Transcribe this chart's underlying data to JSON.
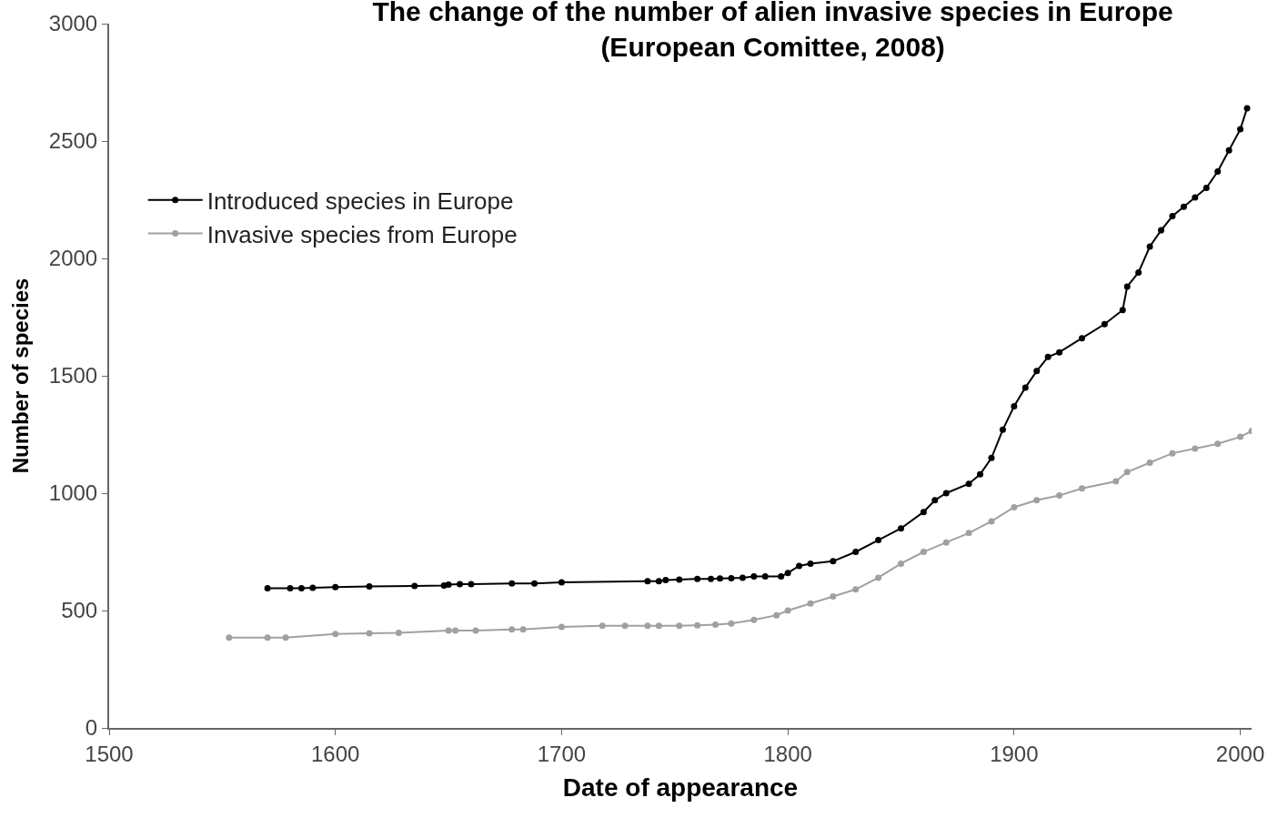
{
  "chart_data": {
    "type": "line",
    "title": "The change of the number of alien invasive species in Europe\n(European Comittee, 2008)",
    "xlabel": "Date of appearance",
    "ylabel": "Number of species",
    "xlim": [
      1500,
      2005
    ],
    "xticks": [
      1500,
      1600,
      1700,
      1800,
      1900,
      2000
    ],
    "ylim": [
      0,
      3000
    ],
    "yticks": [
      0,
      500,
      1000,
      1500,
      2000,
      2500,
      3000
    ],
    "legend": "top left",
    "marker": "circle",
    "line_style": "solid",
    "series": [
      {
        "name": "Introduced species in Europe",
        "color": "#000000",
        "x": [
          1570,
          1580,
          1585,
          1590,
          1600,
          1615,
          1635,
          1648,
          1650,
          1655,
          1660,
          1678,
          1688,
          1700,
          1738,
          1743,
          1746,
          1752,
          1760,
          1766,
          1770,
          1775,
          1780,
          1785,
          1790,
          1797,
          1800,
          1805,
          1810,
          1820,
          1830,
          1840,
          1850,
          1860,
          1865,
          1870,
          1880,
          1885,
          1890,
          1895,
          1900,
          1905,
          1910,
          1915,
          1920,
          1930,
          1940,
          1948,
          1950,
          1955,
          1960,
          1965,
          1970,
          1975,
          1980,
          1985,
          1990,
          1995,
          2000,
          2003
        ],
        "values": [
          595,
          595,
          595,
          597,
          600,
          603,
          605,
          607,
          610,
          612,
          612,
          615,
          615,
          620,
          625,
          625,
          630,
          632,
          635,
          635,
          637,
          638,
          640,
          645,
          645,
          645,
          660,
          690,
          700,
          710,
          750,
          800,
          850,
          920,
          970,
          1000,
          1040,
          1080,
          1150,
          1270,
          1370,
          1450,
          1520,
          1580,
          1600,
          1660,
          1720,
          1780,
          1880,
          1940,
          2050,
          2120,
          2180,
          2220,
          2260,
          2300,
          2370,
          2460,
          2550,
          2640
        ]
      },
      {
        "name": "Invasive species from Europe",
        "color": "#a0a0a0",
        "x": [
          1553,
          1570,
          1578,
          1600,
          1615,
          1628,
          1650,
          1653,
          1662,
          1678,
          1683,
          1700,
          1718,
          1728,
          1738,
          1743,
          1752,
          1760,
          1768,
          1775,
          1785,
          1795,
          1800,
          1810,
          1820,
          1830,
          1840,
          1850,
          1860,
          1870,
          1880,
          1890,
          1900,
          1910,
          1920,
          1930,
          1945,
          1950,
          1960,
          1970,
          1980,
          1990,
          2000,
          2005
        ],
        "values": [
          385,
          385,
          385,
          400,
          403,
          405,
          415,
          415,
          415,
          420,
          420,
          430,
          435,
          435,
          435,
          435,
          435,
          437,
          440,
          445,
          460,
          480,
          500,
          530,
          560,
          590,
          640,
          700,
          750,
          790,
          830,
          880,
          940,
          970,
          990,
          1020,
          1050,
          1090,
          1130,
          1170,
          1190,
          1210,
          1240,
          1265
        ]
      }
    ]
  }
}
